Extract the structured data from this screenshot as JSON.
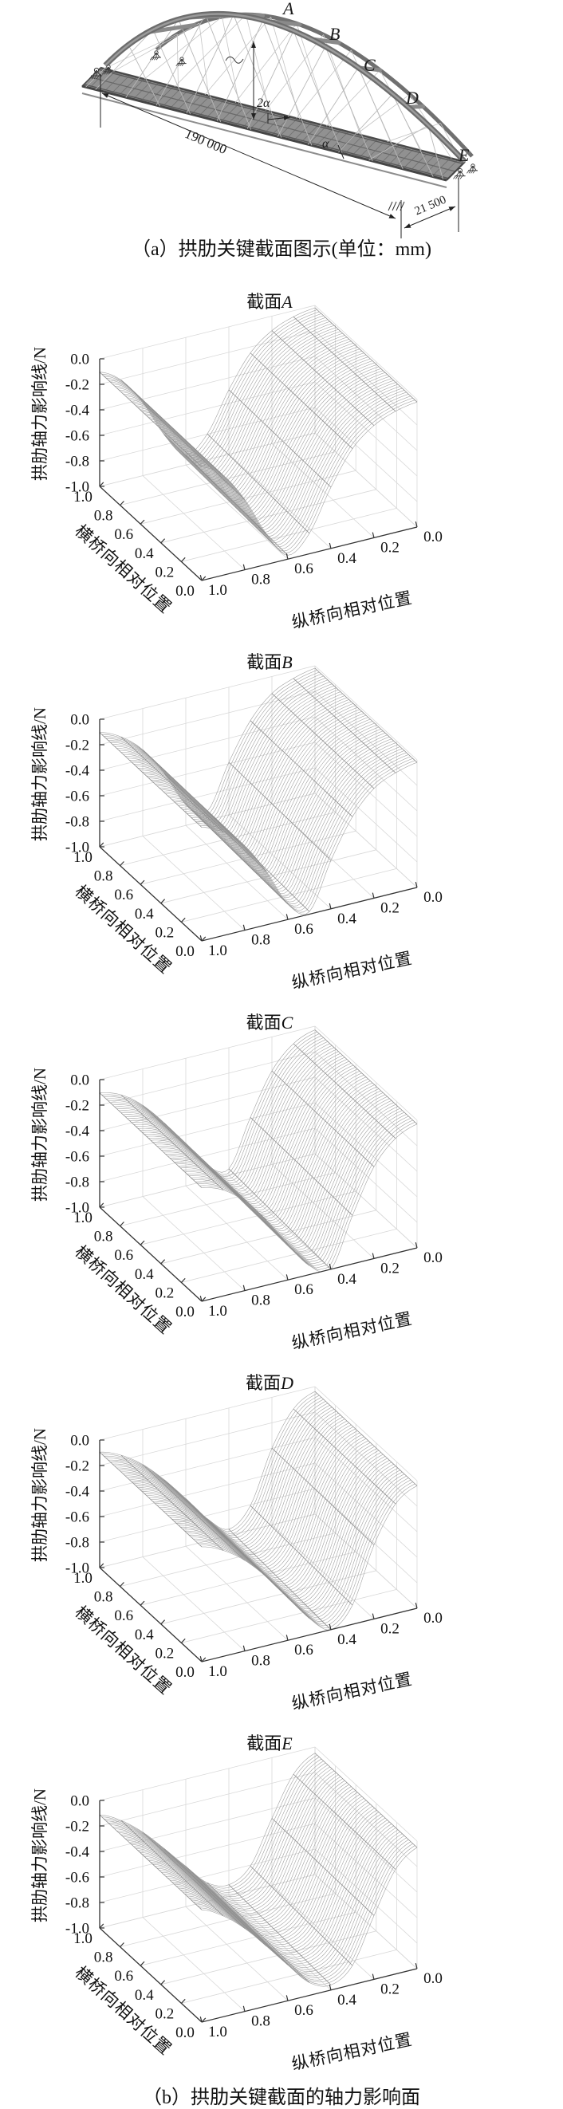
{
  "page": {
    "background": "#ffffff"
  },
  "figure": {
    "panel_a": {
      "caption": "（a）拱肋关键截面图示(单位：mm)",
      "section_labels": [
        "A",
        "B",
        "C",
        "D",
        "E"
      ],
      "span_dimension": "190 000",
      "width_dimension": "21 500",
      "rise_angle_label": "2α",
      "deck_angle_label": "α"
    },
    "panel_b": {
      "caption": "（b）拱肋关键截面的轴力影响面"
    }
  },
  "chart_data": {
    "type": "heatmap",
    "subtype": "3d-mesh-surface-series",
    "description": "Five MATLAB-style grayscale 3D mesh plots of arch-rib axial-force influence surfaces at key sections A-E",
    "common": {
      "zlabel": "拱肋轴力影响线/N",
      "xlabel": "纵桥向相对位置",
      "ylabel": "横桥向相对位置",
      "x_tick_labels": [
        "1.0",
        "0.8",
        "0.6",
        "0.4",
        "0.2",
        "0.0"
      ],
      "y_tick_labels": [
        "1.0",
        "0.8",
        "0.6",
        "0.4",
        "0.2",
        "0.0"
      ],
      "z_tick_labels": [
        "0.0",
        "-0.2",
        "-0.4",
        "-0.6",
        "-0.8",
        "-1.0"
      ],
      "xlim": [
        0,
        1
      ],
      "ylim": [
        0,
        1
      ],
      "zlim": [
        -1,
        0
      ],
      "grid": true,
      "legend": "none",
      "longitudinal_samples": [
        0,
        0.1,
        0.2,
        0.3,
        0.4,
        0.5,
        0.6,
        0.7,
        0.8,
        0.9,
        1.0
      ],
      "transverse_depth_factor": 0.05,
      "style": {
        "mesh_color": "#9a9a9a",
        "cross_line_color": "#8c8c8c",
        "grid_color": "#d8d8d8",
        "axis_color": "#333333",
        "text_color": "#111111"
      }
    },
    "surfaces": [
      {
        "section": "A",
        "title_prefix": "截面",
        "title": "截面A",
        "influence_values": [
          -0.02,
          -0.05,
          -0.12,
          -0.26,
          -0.52,
          -0.84,
          -0.97,
          -0.76,
          -0.45,
          -0.22,
          -0.11
        ]
      },
      {
        "section": "B",
        "title_prefix": "截面",
        "title": "截面B",
        "influence_values": [
          -0.02,
          -0.06,
          -0.14,
          -0.32,
          -0.62,
          -0.98,
          -0.88,
          -0.58,
          -0.34,
          -0.19,
          -0.11
        ]
      },
      {
        "section": "C",
        "title_prefix": "截面",
        "title": "截面C",
        "influence_values": [
          -0.03,
          -0.1,
          -0.28,
          -0.62,
          -1.0,
          -0.93,
          -0.72,
          -0.49,
          -0.3,
          -0.17,
          -0.11
        ]
      },
      {
        "section": "D",
        "title_prefix": "截面",
        "title": "截面D",
        "influence_values": [
          -0.04,
          -0.14,
          -0.42,
          -0.85,
          -1.0,
          -0.87,
          -0.66,
          -0.46,
          -0.29,
          -0.17,
          -0.1
        ]
      },
      {
        "section": "E",
        "title_prefix": "截面",
        "title": "截面E",
        "influence_values": [
          -0.05,
          -0.18,
          -0.5,
          -0.85,
          -0.96,
          -0.9,
          -0.72,
          -0.53,
          -0.35,
          -0.21,
          -0.12
        ]
      }
    ]
  }
}
